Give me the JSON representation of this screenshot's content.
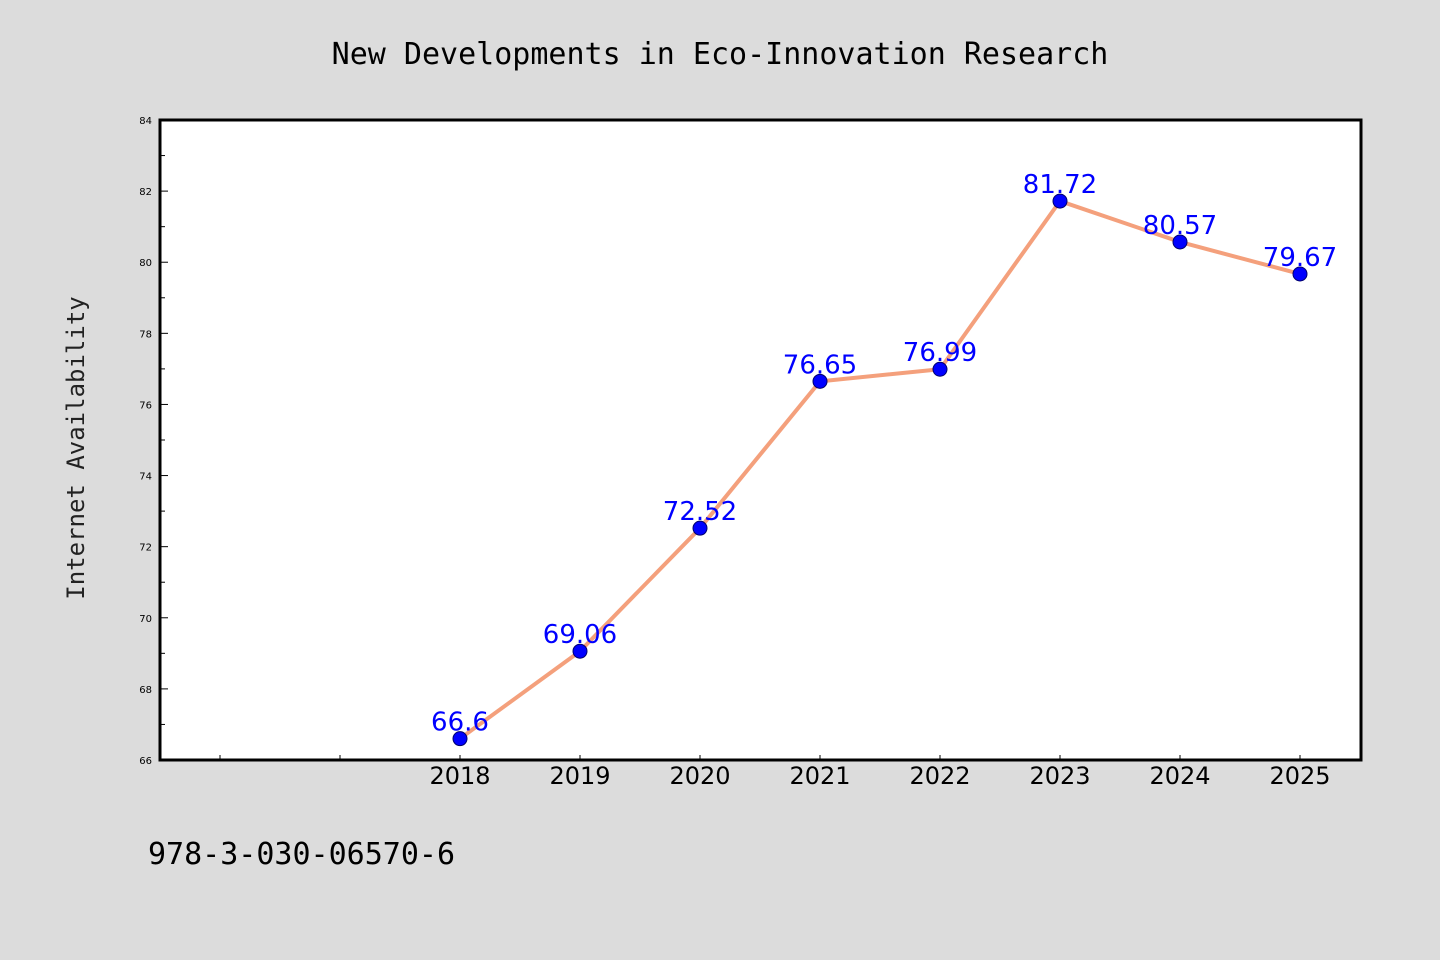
{
  "footer_text": "978-3-030-06570-6",
  "colors": {
    "background": "#dcdcdc",
    "plot_background": "#ffffff",
    "line": "#f4a07c",
    "marker": "#0000ff",
    "data_label": "#0000ff"
  },
  "chart_data": {
    "type": "line",
    "title": "New Developments in Eco-Innovation Research",
    "xlabel": "",
    "ylabel": "Internet Availability",
    "x": [
      "2018",
      "2019",
      "2020",
      "2021",
      "2022",
      "2023",
      "2024",
      "2025"
    ],
    "series": [
      {
        "values": [
          66.6,
          69.06,
          72.52,
          76.65,
          76.99,
          81.72,
          80.57,
          79.67
        ],
        "labels": [
          "66.6",
          "69.06",
          "72.52",
          "76.65",
          "76.99",
          "81.72",
          "80.57",
          "79.67"
        ]
      }
    ],
    "ylim": [
      66,
      84
    ],
    "yticks": [
      66,
      68,
      70,
      72,
      74,
      76,
      78,
      80,
      82,
      84
    ],
    "grid": false,
    "legend": "none"
  }
}
